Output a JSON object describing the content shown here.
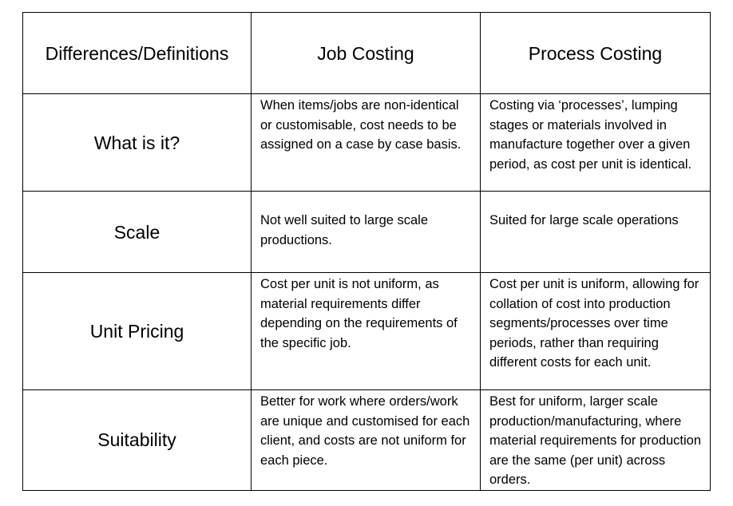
{
  "table": {
    "headers": [
      "Differences/Definitions",
      "Job Costing",
      "Process Costing"
    ],
    "rows": [
      {
        "label": "What is it?",
        "job": "When items/jobs are non-identical or customisable, cost needs to be assigned on a case by case basis.",
        "process": "Costing via ‘processes’, lumping stages or materials involved in manufacture together over a given period, as cost per unit is identical."
      },
      {
        "label": "Scale",
        "job": "Not well suited to large scale productions.",
        "process": "Suited for large scale operations"
      },
      {
        "label": "Unit Pricing",
        "job": "Cost per unit is not uniform, as material requirements differ depending on the requirements of the specific job.",
        "process": "Cost per unit is uniform, allowing for collation of cost into production segments/processes over time periods, rather than requiring different costs for each unit."
      },
      {
        "label": "Suitability",
        "job": "Better for work where orders/work are unique and customised for each client, and costs are not uniform for each piece.",
        "process": "Best for uniform, larger scale production/manufacturing, where material requirements for production are the same (per unit) across orders."
      }
    ]
  }
}
